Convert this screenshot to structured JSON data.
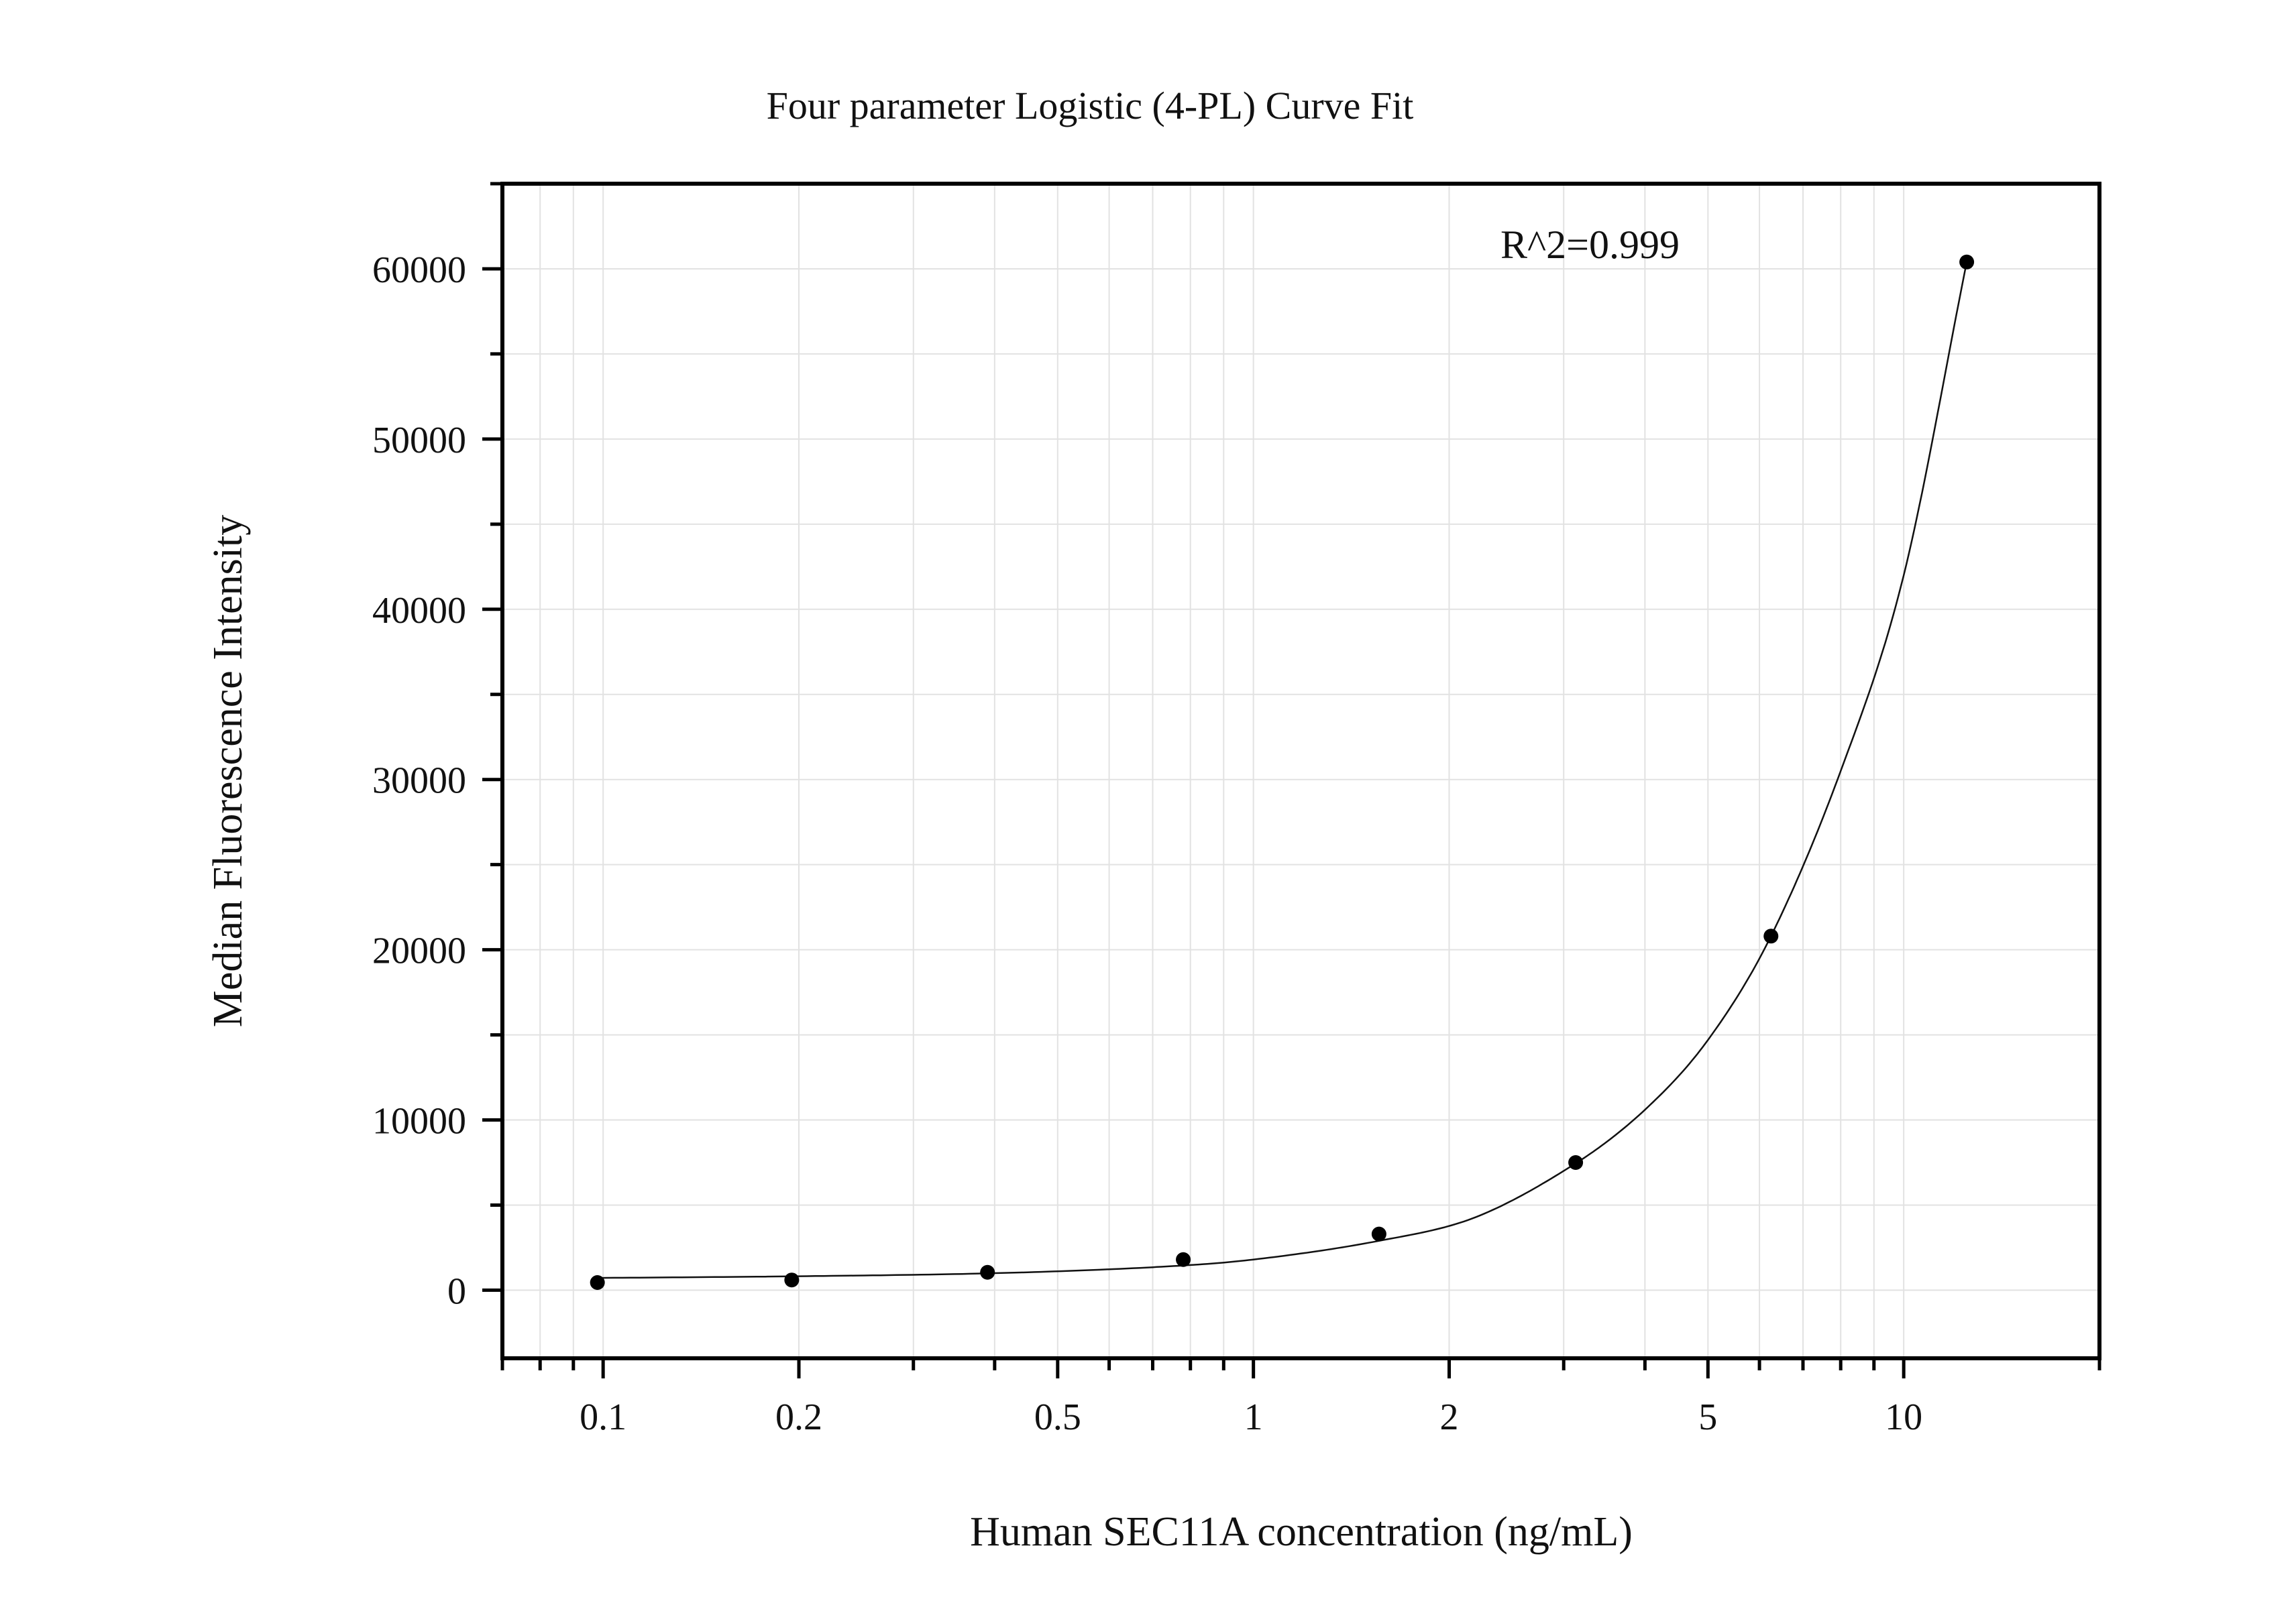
{
  "chart_data": {
    "type": "scatter",
    "title": "Four parameter Logistic (4-PL) Curve Fit",
    "xlabel": "Human SEC11A concentration (ng/mL)",
    "ylabel": "Median Fluorescence Intensity",
    "x_scale": "log",
    "xlim": [
      0.07,
      20
    ],
    "ylim": [
      -4000,
      65000
    ],
    "x_ticks": [
      0.1,
      0.2,
      0.5,
      1,
      2,
      5,
      10
    ],
    "x_tick_labels": [
      "0.1",
      "0.2",
      "0.5",
      "1",
      "2",
      "5",
      "10"
    ],
    "y_ticks": [
      0,
      10000,
      20000,
      30000,
      40000,
      50000,
      60000
    ],
    "y_tick_labels": [
      "0",
      "10000",
      "20000",
      "30000",
      "40000",
      "50000",
      "60000"
    ],
    "grid": true,
    "series": [
      {
        "points": [
          {
            "x": 0.098,
            "y": 450
          },
          {
            "x": 0.195,
            "y": 600
          },
          {
            "x": 0.39,
            "y": 1050
          },
          {
            "x": 0.78,
            "y": 1800
          },
          {
            "x": 1.56,
            "y": 3300
          },
          {
            "x": 3.13,
            "y": 7500
          },
          {
            "x": 6.25,
            "y": 20800
          },
          {
            "x": 12.5,
            "y": 60400
          }
        ]
      }
    ],
    "fit_curve": {
      "model": "4-PL",
      "points": [
        {
          "x": 0.098,
          "y": 720
        },
        {
          "x": 0.2,
          "y": 820
        },
        {
          "x": 0.4,
          "y": 1000
        },
        {
          "x": 0.7,
          "y": 1350
        },
        {
          "x": 1.0,
          "y": 1800
        },
        {
          "x": 1.56,
          "y": 2900
        },
        {
          "x": 2.2,
          "y": 4300
        },
        {
          "x": 3.13,
          "y": 7450
        },
        {
          "x": 4.0,
          "y": 10600
        },
        {
          "x": 5.0,
          "y": 14700
        },
        {
          "x": 6.25,
          "y": 20800
        },
        {
          "x": 8.0,
          "y": 30500
        },
        {
          "x": 10.0,
          "y": 42000
        },
        {
          "x": 12.5,
          "y": 60400
        }
      ]
    },
    "annotations": [
      {
        "text": "R^2=0.999"
      }
    ]
  }
}
